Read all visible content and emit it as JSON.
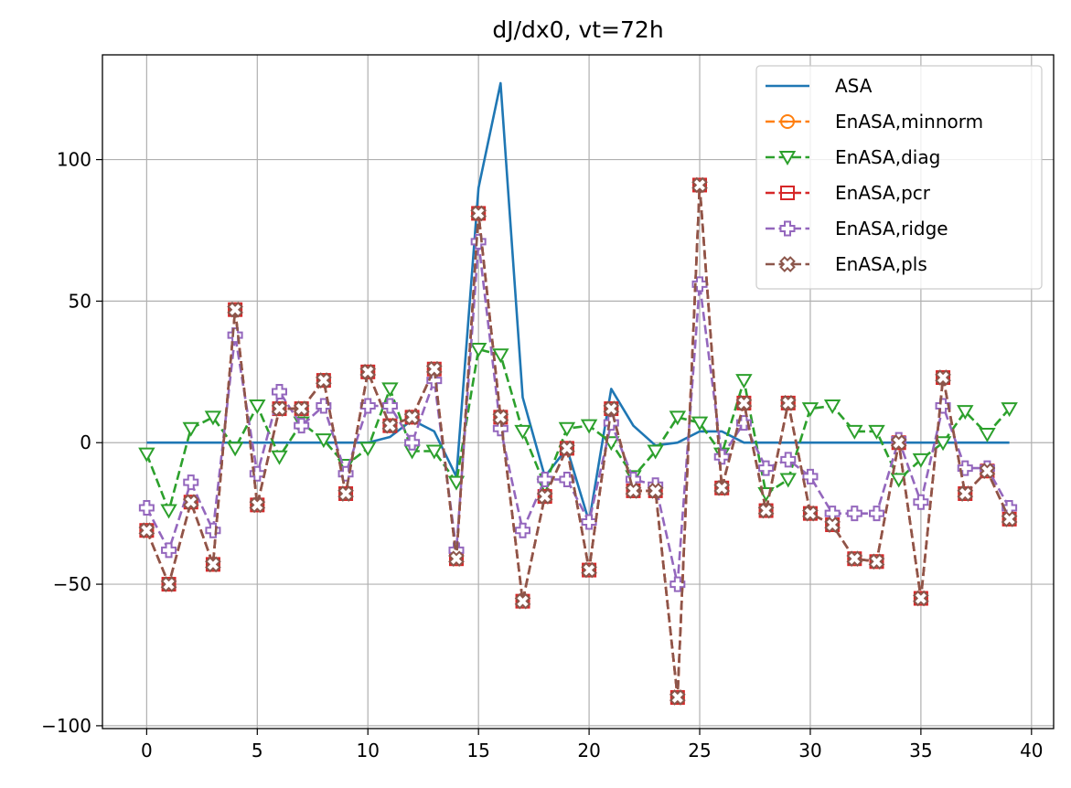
{
  "chart_data": {
    "type": "line",
    "title": "dJ/dx0, vt=72h",
    "xlabel": "",
    "ylabel": "",
    "xlim": [
      -2,
      41
    ],
    "ylim": [
      -101,
      137
    ],
    "xticks": [
      0,
      5,
      10,
      15,
      20,
      25,
      30,
      35,
      40
    ],
    "yticks": [
      -100,
      -50,
      0,
      50,
      100
    ],
    "xtick_labels": [
      "0",
      "5",
      "10",
      "15",
      "20",
      "25",
      "30",
      "35",
      "40"
    ],
    "ytick_labels": [
      "−100",
      "−50",
      "0",
      "50",
      "100"
    ],
    "grid": true,
    "legend_position": "upper right",
    "x": [
      0,
      1,
      2,
      3,
      4,
      5,
      6,
      7,
      8,
      9,
      10,
      11,
      12,
      13,
      14,
      15,
      16,
      17,
      18,
      19,
      20,
      21,
      22,
      23,
      24,
      25,
      26,
      27,
      28,
      29,
      30,
      31,
      32,
      33,
      34,
      35,
      36,
      37,
      38,
      39
    ],
    "series": [
      {
        "name": "ASA",
        "color": "#1f77b4",
        "linestyle": "solid",
        "marker": "none",
        "values": [
          0,
          0,
          0,
          0,
          0,
          0,
          0,
          0,
          0,
          0,
          0,
          2,
          8,
          4,
          -12,
          90,
          127,
          16,
          -12,
          -2,
          -28,
          19,
          6,
          -1,
          0,
          4,
          4,
          0,
          0,
          0,
          0,
          0,
          0,
          0,
          0,
          0,
          0,
          0,
          0,
          0
        ]
      },
      {
        "name": "EnASA,minnorm",
        "color": "#ff7f0e",
        "linestyle": "dashed",
        "marker": "theta",
        "values": [
          -31,
          -50,
          -21,
          -43,
          47,
          -22,
          12,
          12,
          22,
          -18,
          25,
          6,
          9,
          26,
          -41,
          81,
          9,
          -56,
          -19,
          -2,
          -45,
          12,
          -17,
          -17,
          -90,
          91,
          -16,
          14,
          -24,
          14,
          -25,
          -29,
          -41,
          -42,
          0,
          -55,
          23,
          -18,
          -10,
          -27
        ]
      },
      {
        "name": "EnASA,diag",
        "color": "#2ca02c",
        "linestyle": "dashed",
        "marker": "triangle-down",
        "values": [
          -4,
          -24,
          5,
          9,
          -2,
          13,
          -5,
          7,
          1,
          -8,
          -2,
          19,
          -3,
          -3,
          -14,
          33,
          31,
          4,
          -15,
          5,
          6,
          0,
          -12,
          -3,
          9,
          7,
          -4,
          22,
          -18,
          -13,
          12,
          13,
          4,
          4,
          -13,
          -6,
          0,
          11,
          3,
          12
        ]
      },
      {
        "name": "EnASA,pcr",
        "color": "#d62728",
        "linestyle": "dashed",
        "marker": "square-bar",
        "values": [
          -31,
          -50,
          -21,
          -43,
          47,
          -22,
          12,
          12,
          22,
          -18,
          25,
          6,
          9,
          26,
          -41,
          81,
          9,
          -56,
          -19,
          -2,
          -45,
          12,
          -17,
          -17,
          -90,
          91,
          -16,
          14,
          -24,
          14,
          -25,
          -29,
          -41,
          -42,
          0,
          -55,
          23,
          -18,
          -10,
          -27
        ]
      },
      {
        "name": "EnASA,ridge",
        "color": "#9467bd",
        "linestyle": "dashed",
        "marker": "plus-filled",
        "values": [
          -23,
          -38,
          -14,
          -31,
          38,
          -11,
          18,
          6,
          13,
          -11,
          13,
          13,
          0,
          22,
          -38,
          71,
          5,
          -31,
          -13,
          -13,
          -28,
          7,
          -13,
          -15,
          -50,
          56,
          -5,
          7,
          -9,
          -6,
          -12,
          -25,
          -25,
          -25,
          1,
          -21,
          13,
          -9,
          -9,
          -23
        ]
      },
      {
        "name": "EnASA,pls",
        "color": "#8c564b",
        "linestyle": "dashed",
        "marker": "x-filled",
        "values": [
          -31,
          -50,
          -21,
          -43,
          47,
          -22,
          12,
          12,
          22,
          -18,
          25,
          6,
          9,
          26,
          -41,
          81,
          9,
          -56,
          -19,
          -2,
          -45,
          12,
          -17,
          -17,
          -90,
          91,
          -16,
          14,
          -24,
          14,
          -25,
          -29,
          -41,
          -42,
          0,
          -55,
          23,
          -18,
          -10,
          -27
        ]
      }
    ]
  }
}
